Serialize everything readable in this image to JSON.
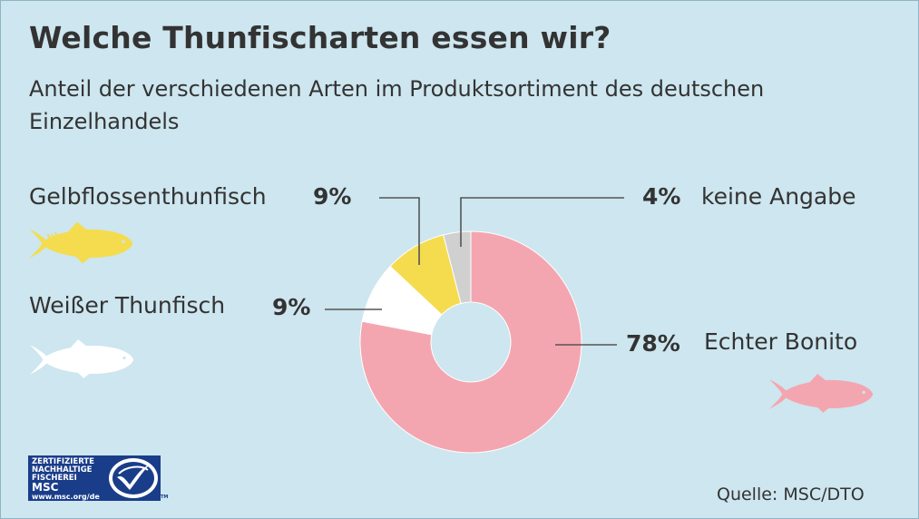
{
  "title": "Welche Thunfischarten essen wir?",
  "subtitle": "Anteil der verschiedenen Arten im Produktsortiment des deutschen Einzelhandels",
  "labels": {
    "gelbflossen": "Gelbflossenthunfisch",
    "weisser": "Weißer Thunfisch",
    "bonito": "Echter Bonito",
    "keine": "keine Angabe"
  },
  "percents": {
    "gelbflossen": "9%",
    "weisser": "9%",
    "bonito": "78%",
    "keine": "4%"
  },
  "source": "Quelle: MSC/DTO",
  "logo": {
    "line1": "ZERTIFIZIERTE",
    "line2": "NACHHALTIGE",
    "line3": "FISCHEREI",
    "line4": "MSC",
    "url": "www.msc.org/de",
    "tm": "TM"
  },
  "colors": {
    "bonito": "#f4a6b0",
    "weisser": "#ffffff",
    "gelbflossen": "#f4dc4e",
    "keine": "#d0d0d0",
    "background": "#cde6ef",
    "logo": "#1a3d8a"
  },
  "chart_data": {
    "type": "pie",
    "variant": "donut",
    "title": "Welche Thunfischarten essen wir?",
    "subtitle": "Anteil der verschiedenen Arten im Produktsortiment des deutschen Einzelhandels",
    "unit": "%",
    "slices": [
      {
        "name": "Echter Bonito",
        "value": 78
      },
      {
        "name": "Weißer Thunfisch",
        "value": 9
      },
      {
        "name": "Gelbflossenthunfisch",
        "value": 9
      },
      {
        "name": "keine Angabe",
        "value": 4
      }
    ]
  }
}
